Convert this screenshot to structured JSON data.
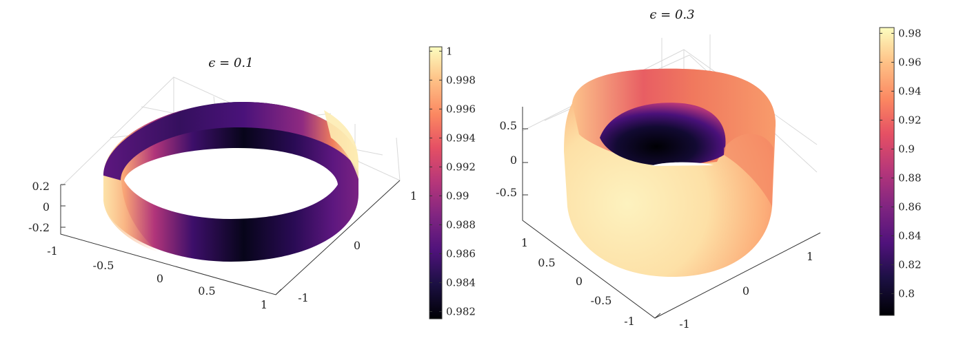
{
  "chart_data": [
    {
      "type": "surface",
      "title": "ϵ = 0.1",
      "colormap": "magma",
      "colors": {
        "low": "#000004",
        "mid": "#8c2981",
        "high": "#fcfdbf"
      },
      "x_ticks": [
        "-1",
        "-0.5",
        "0",
        "0.5",
        "1"
      ],
      "y_ticks": [
        "-1",
        "0",
        "1"
      ],
      "z_ticks": [
        "0.2",
        "0",
        "-0.2"
      ],
      "colorbar": {
        "range": [
          0.9815,
          1.0003
        ],
        "ticks": [
          "1",
          "0.998",
          "0.996",
          "0.994",
          "0.992",
          "0.99",
          "0.988",
          "0.986",
          "0.984",
          "0.982"
        ],
        "values": [
          1.0,
          0.998,
          0.996,
          0.994,
          0.992,
          0.99,
          0.988,
          0.986,
          0.984,
          0.982
        ]
      }
    },
    {
      "type": "surface",
      "title": "ϵ = 0.3",
      "colormap": "magma",
      "colors": {
        "low": "#000004",
        "mid": "#8c2981",
        "high": "#fcfdbf"
      },
      "x_ticks": [
        "-1",
        "-0.5",
        "0",
        "0.5",
        "1"
      ],
      "y_ticks": [
        "-1",
        "0",
        "1"
      ],
      "z_ticks": [
        "0.5",
        "0",
        "-0.5"
      ],
      "colorbar": {
        "range": [
          0.785,
          0.984
        ],
        "ticks": [
          "0.98",
          "0.96",
          "0.94",
          "0.92",
          "0.9",
          "0.88",
          "0.86",
          "0.84",
          "0.82",
          "0.8"
        ],
        "values": [
          0.98,
          0.96,
          0.94,
          0.92,
          0.9,
          0.88,
          0.86,
          0.84,
          0.82,
          0.8
        ]
      }
    }
  ]
}
